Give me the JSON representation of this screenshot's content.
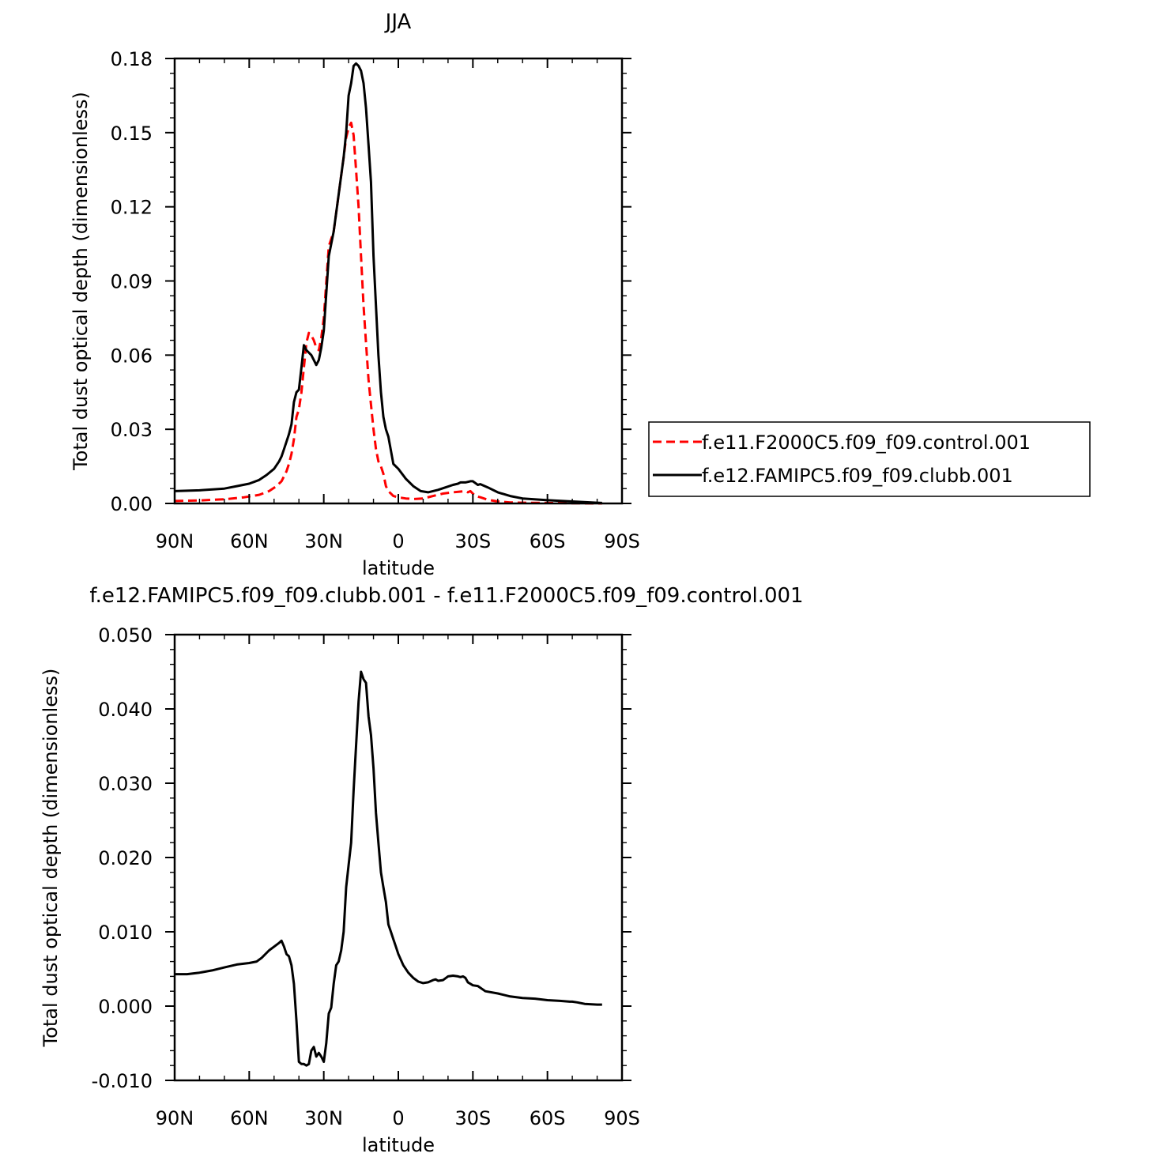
{
  "chart_data": [
    {
      "type": "line",
      "title": "JJA",
      "xlabel": "latitude",
      "ylabel": "Total dust optical depth (dimensionless)",
      "xlim": [
        90,
        -90
      ],
      "ylim": [
        0,
        0.18
      ],
      "x_tick_labels": [
        "90N",
        "60N",
        "30N",
        "0",
        "30S",
        "60S",
        "90S"
      ],
      "x_tick_values": [
        90,
        60,
        30,
        0,
        -30,
        -60,
        -90
      ],
      "y_tick_labels": [
        "0.00",
        "0.03",
        "0.06",
        "0.09",
        "0.12",
        "0.15",
        "0.18"
      ],
      "y_tick_values": [
        0,
        0.03,
        0.06,
        0.09,
        0.12,
        0.15,
        0.18
      ],
      "legend_position": "right",
      "series": [
        {
          "name": "f.e11.F2000C5.f09_f09.control.001",
          "color": "#ff0000",
          "style": "dashed",
          "x": [
            90,
            80,
            70,
            62,
            56,
            52,
            49,
            47,
            46,
            45,
            44,
            43,
            42,
            41,
            40,
            39,
            38,
            37,
            36,
            35,
            34,
            33,
            32,
            31,
            30,
            28,
            26,
            24,
            22,
            21,
            20,
            19,
            18,
            17,
            16,
            15,
            14,
            13,
            12,
            11,
            10,
            9,
            8,
            7,
            6,
            5,
            4,
            2,
            0,
            -3,
            -6,
            -10,
            -14,
            -18,
            -22,
            -25,
            -27,
            -28,
            -29,
            -30,
            -31,
            -33,
            -36,
            -40,
            -45,
            -50,
            -60,
            -70,
            -80,
            -82
          ],
          "y": [
            0.001,
            0.0012,
            0.0017,
            0.0025,
            0.0035,
            0.005,
            0.007,
            0.009,
            0.011,
            0.013,
            0.016,
            0.02,
            0.026,
            0.035,
            0.038,
            0.045,
            0.055,
            0.065,
            0.069,
            0.068,
            0.066,
            0.063,
            0.062,
            0.067,
            0.075,
            0.104,
            0.11,
            0.125,
            0.14,
            0.148,
            0.152,
            0.154,
            0.149,
            0.135,
            0.12,
            0.1,
            0.08,
            0.065,
            0.05,
            0.04,
            0.03,
            0.022,
            0.017,
            0.015,
            0.012,
            0.007,
            0.005,
            0.003,
            0.0025,
            0.002,
            0.0018,
            0.002,
            0.003,
            0.004,
            0.0045,
            0.0048,
            0.005,
            0.0045,
            0.005,
            0.004,
            0.003,
            0.0025,
            0.0015,
            0.0008,
            0.0004,
            0.0003,
            0.0002,
            0.0001,
            0.0,
            0.0
          ]
        },
        {
          "name": "f.e12.FAMIPC5.f09_f09.clubb.001",
          "color": "#000000",
          "style": "solid",
          "x": [
            90,
            80,
            70,
            65,
            60,
            56,
            53,
            50,
            48,
            47,
            46,
            45,
            44,
            43,
            42,
            41,
            40,
            39,
            38,
            37,
            36,
            35,
            34,
            33,
            32,
            31,
            30,
            28,
            26,
            24,
            22,
            21,
            20,
            19,
            18,
            17,
            16,
            15,
            14,
            13,
            12,
            11,
            10,
            9,
            8,
            7,
            6,
            5,
            4,
            2,
            0,
            -3,
            -6,
            -9,
            -12,
            -16,
            -19,
            -22,
            -24,
            -25,
            -27,
            -29,
            -30,
            -32,
            -33,
            -36,
            -40,
            -45,
            -50,
            -60,
            -70,
            -80,
            -82
          ],
          "y": [
            0.005,
            0.0053,
            0.006,
            0.007,
            0.008,
            0.0095,
            0.0115,
            0.014,
            0.017,
            0.019,
            0.022,
            0.025,
            0.028,
            0.032,
            0.041,
            0.045,
            0.046,
            0.055,
            0.064,
            0.062,
            0.061,
            0.06,
            0.058,
            0.056,
            0.058,
            0.063,
            0.07,
            0.1,
            0.11,
            0.125,
            0.14,
            0.15,
            0.165,
            0.17,
            0.177,
            0.178,
            0.177,
            0.175,
            0.17,
            0.16,
            0.145,
            0.13,
            0.1,
            0.08,
            0.06,
            0.045,
            0.035,
            0.03,
            0.027,
            0.016,
            0.014,
            0.01,
            0.007,
            0.005,
            0.0045,
            0.0055,
            0.0065,
            0.0075,
            0.008,
            0.0085,
            0.0085,
            0.009,
            0.009,
            0.0075,
            0.0078,
            0.0065,
            0.0045,
            0.003,
            0.002,
            0.0013,
            0.0008,
            0.0003,
            0.0002
          ]
        }
      ]
    },
    {
      "type": "line",
      "title": "f.e12.FAMIPC5.f09_f09.clubb.001 - f.e11.F2000C5.f09_f09.control.001",
      "xlabel": "latitude",
      "ylabel": "Total dust optical depth (dimensionless)",
      "xlim": [
        90,
        -90
      ],
      "ylim": [
        -0.01,
        0.05
      ],
      "x_tick_labels": [
        "90N",
        "60N",
        "30N",
        "0",
        "30S",
        "60S",
        "90S"
      ],
      "x_tick_values": [
        90,
        60,
        30,
        0,
        -30,
        -60,
        -90
      ],
      "y_tick_labels": [
        "-0.010",
        "0.000",
        "0.010",
        "0.020",
        "0.030",
        "0.040",
        "0.050"
      ],
      "y_tick_values": [
        -0.01,
        0,
        0.01,
        0.02,
        0.03,
        0.04,
        0.05
      ],
      "series": [
        {
          "name": "",
          "color": "#000000",
          "style": "solid",
          "x": [
            90,
            85,
            80,
            75,
            70,
            65,
            60,
            57,
            55,
            52,
            50,
            48,
            47,
            46,
            45,
            44,
            43,
            42,
            41,
            40,
            39,
            38,
            37,
            36,
            35,
            34,
            33,
            32,
            31,
            30,
            29,
            28,
            27,
            26,
            25,
            24,
            23,
            22,
            21,
            20,
            19,
            18,
            17,
            16,
            15,
            14,
            13,
            12,
            11,
            10,
            9,
            8,
            7,
            6,
            5,
            4,
            3,
            2,
            1,
            0,
            -2,
            -4,
            -6,
            -8,
            -10,
            -12,
            -14,
            -15,
            -16,
            -18,
            -20,
            -22,
            -24,
            -25,
            -26,
            -27,
            -28,
            -29,
            -30,
            -32,
            -35,
            -40,
            -45,
            -50,
            -55,
            -60,
            -65,
            -69,
            -70,
            -72,
            -75,
            -80,
            -82
          ],
          "y": [
            0.0043,
            0.0043,
            0.0045,
            0.0048,
            0.0052,
            0.0056,
            0.0058,
            0.006,
            0.0065,
            0.0075,
            0.008,
            0.0085,
            0.0088,
            0.008,
            0.007,
            0.0067,
            0.0055,
            0.003,
            -0.002,
            -0.0075,
            -0.0078,
            -0.0078,
            -0.008,
            -0.0078,
            -0.006,
            -0.0055,
            -0.0068,
            -0.0063,
            -0.0068,
            -0.0075,
            -0.005,
            -0.001,
            -0.0002,
            0.003,
            0.0055,
            0.006,
            0.0075,
            0.01,
            0.016,
            0.019,
            0.022,
            0.029,
            0.035,
            0.041,
            0.045,
            0.044,
            0.0435,
            0.039,
            0.0365,
            0.032,
            0.026,
            0.022,
            0.018,
            0.016,
            0.014,
            0.011,
            0.01,
            0.009,
            0.008,
            0.007,
            0.0055,
            0.0045,
            0.0038,
            0.0033,
            0.0031,
            0.0032,
            0.0035,
            0.0036,
            0.0034,
            0.0035,
            0.004,
            0.0041,
            0.004,
            0.0039,
            0.004,
            0.0038,
            0.0032,
            0.003,
            0.0028,
            0.0027,
            0.002,
            0.0017,
            0.0013,
            0.0011,
            0.001,
            0.0008,
            0.0007,
            0.0006,
            0.0006,
            0.0005,
            0.0003,
            0.0002,
            0.0002
          ]
        }
      ]
    }
  ]
}
